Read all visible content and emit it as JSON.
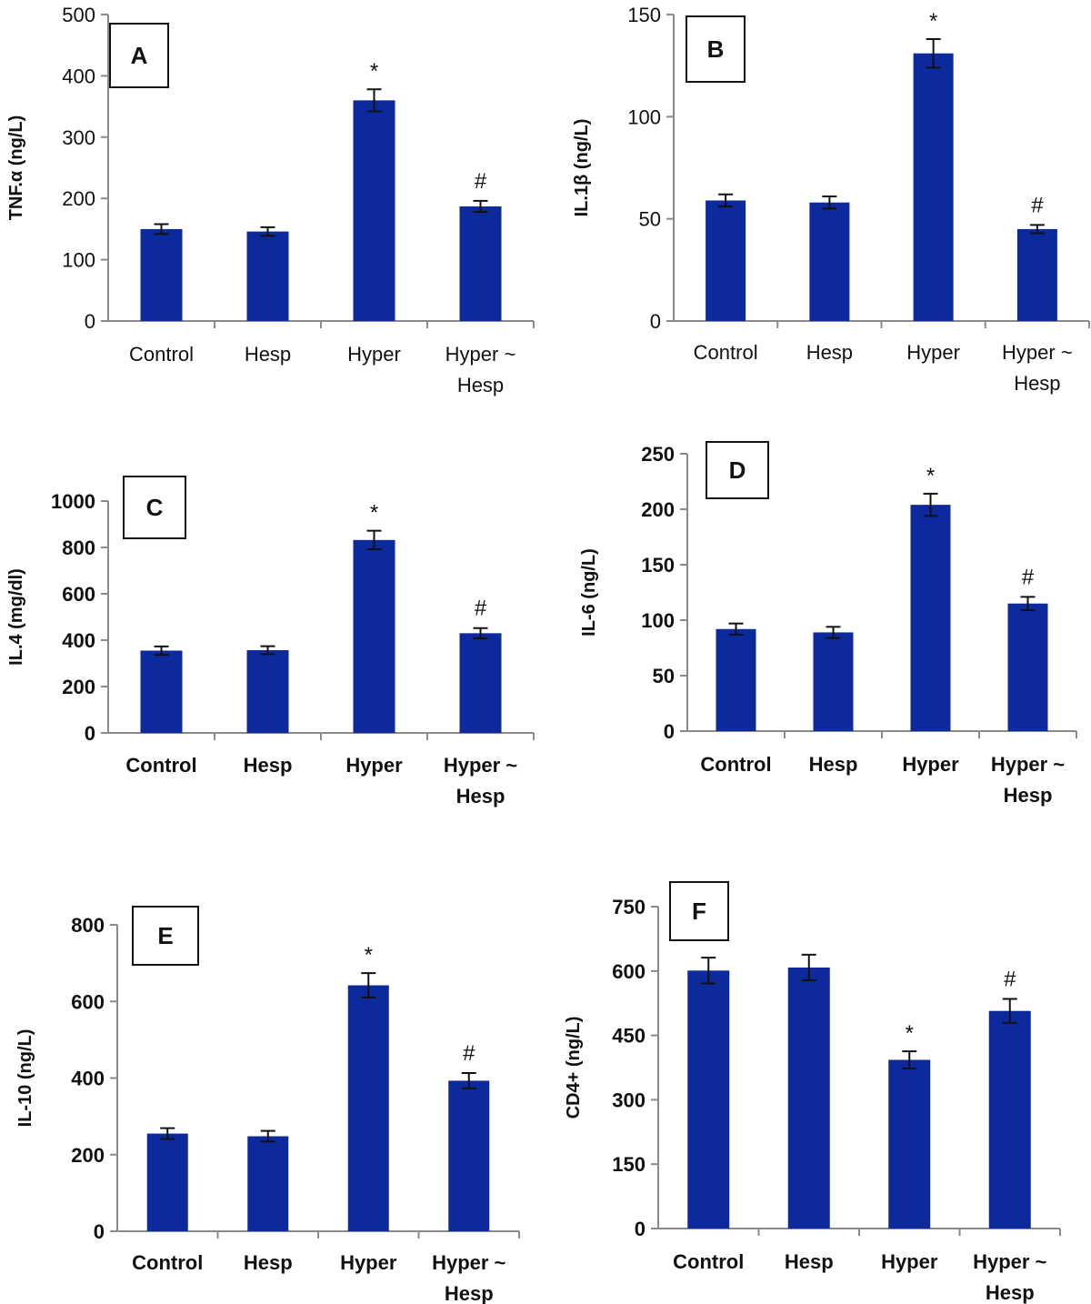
{
  "chart_data": [
    {
      "type": "bar",
      "panel_label": "A",
      "ylabel": "TNF.α (ng/L)",
      "ylim": [
        0,
        500
      ],
      "yticks": [
        0,
        100,
        200,
        300,
        400,
        500
      ],
      "categories": [
        [
          "Control"
        ],
        [
          "Hesp"
        ],
        [
          "Hyper"
        ],
        [
          "Hyper ~",
          "Hesp"
        ]
      ],
      "values": [
        150,
        146,
        360,
        187
      ],
      "errors": [
        8,
        7,
        18,
        9
      ],
      "annotations": [
        "",
        "",
        "*",
        "#"
      ],
      "bar_color": "#0d2a9c"
    },
    {
      "type": "bar",
      "panel_label": "B",
      "ylabel": "IL.1β (ng/L)",
      "ylim": [
        0,
        150
      ],
      "yticks": [
        0,
        50,
        100,
        150
      ],
      "categories": [
        [
          "Control"
        ],
        [
          "Hesp"
        ],
        [
          "Hyper"
        ],
        [
          "Hyper ~",
          "Hesp"
        ]
      ],
      "values": [
        59,
        58,
        131,
        45
      ],
      "errors": [
        3,
        3,
        7,
        2
      ],
      "annotations": [
        "",
        "",
        "*",
        "#"
      ],
      "bar_color": "#0d2a9c"
    },
    {
      "type": "bar",
      "panel_label": "C",
      "ylabel": "IL.4 (mg/dl)",
      "ylim": [
        0,
        1000
      ],
      "yticks": [
        0,
        200,
        400,
        600,
        800,
        1000
      ],
      "categories": [
        [
          "Control"
        ],
        [
          "Hesp"
        ],
        [
          "Hyper"
        ],
        [
          "Hyper ~",
          "Hesp"
        ]
      ],
      "values": [
        355,
        357,
        832,
        430
      ],
      "errors": [
        18,
        17,
        40,
        22
      ],
      "annotations": [
        "",
        "",
        "*",
        "#"
      ],
      "bar_color": "#0d2a9c"
    },
    {
      "type": "bar",
      "panel_label": "D",
      "ylabel": "IL-6 (ng/L)",
      "ylim": [
        0,
        250
      ],
      "yticks": [
        0,
        50,
        100,
        150,
        200,
        250
      ],
      "categories": [
        [
          "Control"
        ],
        [
          "Hesp"
        ],
        [
          "Hyper"
        ],
        [
          "Hyper ~",
          "Hesp"
        ]
      ],
      "values": [
        92,
        89,
        204,
        115
      ],
      "errors": [
        5,
        5,
        10,
        6
      ],
      "annotations": [
        "",
        "",
        "*",
        "#"
      ],
      "bar_color": "#0d2a9c"
    },
    {
      "type": "bar",
      "panel_label": "E",
      "ylabel": "IL-10 (ng/L)",
      "ylim": [
        0,
        800
      ],
      "yticks": [
        0,
        200,
        400,
        600,
        800
      ],
      "categories": [
        [
          "Control"
        ],
        [
          "Hesp"
        ],
        [
          "Hyper"
        ],
        [
          "Hyper ~",
          "Hesp"
        ]
      ],
      "values": [
        255,
        248,
        642,
        393
      ],
      "errors": [
        14,
        14,
        32,
        20
      ],
      "annotations": [
        "",
        "",
        "*",
        "#"
      ],
      "bar_color": "#0d2a9c"
    },
    {
      "type": "bar",
      "panel_label": "F",
      "ylabel": "CD4+ (ng/L)",
      "ylim": [
        0,
        750
      ],
      "yticks": [
        0,
        150,
        300,
        450,
        600,
        750
      ],
      "categories": [
        [
          "Control"
        ],
        [
          "Hesp"
        ],
        [
          "Hyper"
        ],
        [
          "Hyper ~",
          "Hesp"
        ]
      ],
      "values": [
        601,
        608,
        393,
        507
      ],
      "errors": [
        30,
        30,
        20,
        28
      ],
      "annotations": [
        "",
        "",
        "*",
        "#"
      ],
      "bar_color": "#0d2a9c"
    }
  ]
}
